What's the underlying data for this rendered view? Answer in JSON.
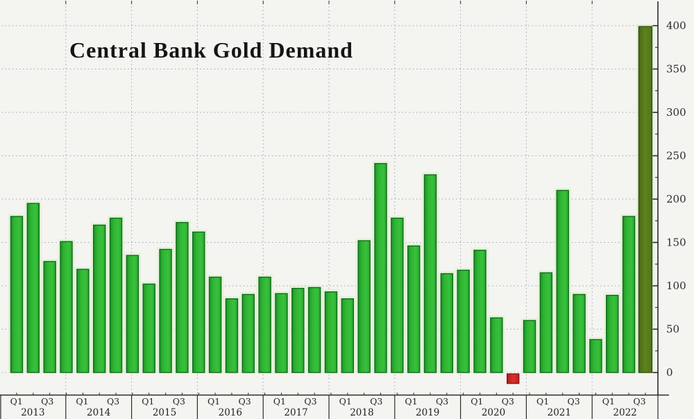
{
  "chart_data": {
    "type": "bar",
    "title": "Central Bank Gold Demand",
    "categories": [
      "2013 Q1",
      "2013 Q2",
      "2013 Q3",
      "2013 Q4",
      "2014 Q1",
      "2014 Q2",
      "2014 Q3",
      "2014 Q4",
      "2015 Q1",
      "2015 Q2",
      "2015 Q3",
      "2015 Q4",
      "2016 Q1",
      "2016 Q2",
      "2016 Q3",
      "2016 Q4",
      "2017 Q1",
      "2017 Q2",
      "2017 Q3",
      "2017 Q4",
      "2018 Q1",
      "2018 Q2",
      "2018 Q3",
      "2018 Q4",
      "2019 Q1",
      "2019 Q2",
      "2019 Q3",
      "2019 Q4",
      "2020 Q1",
      "2020 Q2",
      "2020 Q3",
      "2020 Q4",
      "2021 Q1",
      "2021 Q2",
      "2021 Q3",
      "2021 Q4",
      "2022 Q1",
      "2022 Q2",
      "2022 Q3"
    ],
    "values": [
      180,
      195,
      128,
      151,
      119,
      170,
      178,
      135,
      102,
      142,
      173,
      162,
      110,
      85,
      90,
      110,
      91,
      97,
      98,
      93,
      85,
      152,
      241,
      178,
      146,
      228,
      114,
      118,
      141,
      63,
      -11,
      60,
      115,
      210,
      90,
      38,
      89,
      180,
      399
    ],
    "negative_indices": [
      30
    ],
    "highlight_indices": [
      38
    ],
    "x_axis": {
      "years": [
        "2013",
        "2014",
        "2015",
        "2016",
        "2017",
        "2018",
        "2019",
        "2020",
        "2021",
        "2022"
      ],
      "quarter_tick_labels": [
        "Q1",
        "Q3"
      ]
    },
    "y_axis": {
      "ticks": [
        0,
        50,
        100,
        150,
        200,
        250,
        300,
        350,
        400
      ],
      "side": "right",
      "minor_tick_step": 25,
      "ylim": [
        -27,
        430
      ]
    },
    "grid": {
      "horizontal_step": 50,
      "vertical": "year-boundaries",
      "style": "dotted"
    },
    "legend": "none",
    "colors": {
      "background": "#f4f4f1",
      "bar_positive": "#2db32d",
      "bar_positive_border": "#0f6b1a",
      "bar_negative": "#cf2626",
      "bar_negative_border": "#8c1212",
      "bar_highlight": "#577c1c",
      "bar_highlight_border": "#36500e",
      "bar_halo": "#ddf1cf",
      "gridline": "#a2a6b0",
      "axis": "#2a2a2a"
    }
  }
}
